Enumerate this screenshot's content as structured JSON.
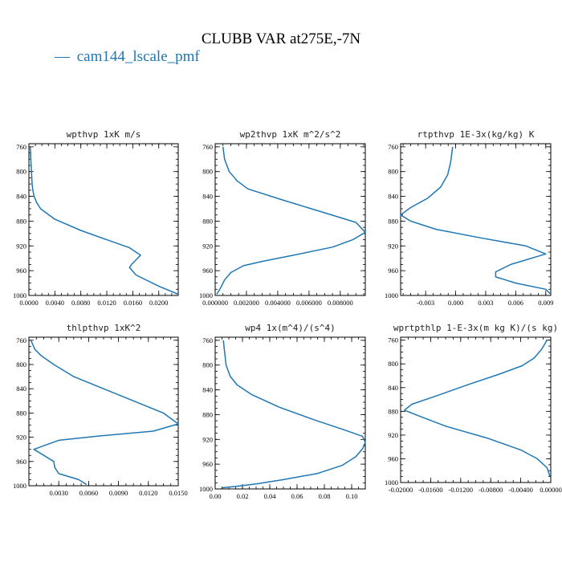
{
  "figure": {
    "title": "CLUBB VAR at275E,-7N",
    "legend": [
      {
        "label": "cam144_lscale_pmf",
        "color": "#1f77b4",
        "marker": "—"
      }
    ]
  },
  "chart_data": [
    {
      "type": "line",
      "title": "wpthvp   1xK m/s",
      "xlim": [
        0.0,
        0.023
      ],
      "ylim": [
        1000,
        755
      ],
      "y_inverted": true,
      "xticks": [
        0.0,
        0.004,
        0.008,
        0.012,
        0.016,
        0.02
      ],
      "xtick_labels": [
        "0.0000",
        "0.0040",
        "0.0080",
        "0.0120",
        "0.0160",
        "0.0200"
      ],
      "yticks": [
        760,
        800,
        840,
        880,
        920,
        960,
        1000
      ],
      "ytick_labels": [
        "760",
        "800",
        "840",
        "880",
        "920",
        "960",
        "1000"
      ],
      "series": [
        {
          "name": "cam144_lscale_pmf",
          "color": "#1f77b4",
          "x": [
            0.0002,
            0.0003,
            0.0004,
            0.0005,
            0.0006,
            0.0008,
            0.0012,
            0.0018,
            0.004,
            0.008,
            0.012,
            0.0155,
            0.0172,
            0.0158,
            0.0155,
            0.0165,
            0.02,
            0.023
          ],
          "y": [
            760,
            780,
            800,
            820,
            830,
            840,
            850,
            860,
            877,
            895,
            910,
            923,
            935,
            950,
            955,
            967,
            985,
            998
          ]
        }
      ]
    },
    {
      "type": "line",
      "title": "wp2thvp   1xK m^2/s^2",
      "xlim": [
        0.0,
        0.0096
      ],
      "ylim": [
        1000,
        755
      ],
      "y_inverted": true,
      "xticks": [
        0.0,
        0.002,
        0.004,
        0.006,
        0.008
      ],
      "xtick_labels": [
        "0.000000",
        "0.002000",
        "0.004000",
        "0.006000",
        "0.008000"
      ],
      "yticks": [
        760,
        800,
        840,
        880,
        920,
        960,
        1000
      ],
      "ytick_labels": [
        "760",
        "800",
        "840",
        "880",
        "920",
        "960",
        "1000"
      ],
      "series": [
        {
          "name": "cam144_lscale_pmf",
          "color": "#1f77b4",
          "x": [
            0.0005,
            0.0006,
            0.0009,
            0.0014,
            0.0021,
            0.0042,
            0.0068,
            0.009,
            0.0096,
            0.0088,
            0.0075,
            0.005,
            0.003,
            0.0018,
            0.001,
            0.0006,
            0.0003,
            0.0001
          ],
          "y": [
            760,
            780,
            800,
            815,
            828,
            845,
            865,
            882,
            898,
            910,
            922,
            935,
            945,
            952,
            963,
            975,
            990,
            998
          ]
        }
      ]
    },
    {
      "type": "line",
      "title": "rtpthvp   1E-3x(kg/kg) K",
      "xlim": [
        -0.0055,
        0.0095
      ],
      "ylim": [
        1000,
        755
      ],
      "y_inverted": true,
      "xticks": [
        -0.003,
        0.0,
        0.003,
        0.006,
        0.009
      ],
      "xtick_labels": [
        "-0.003",
        "0.000",
        "0.003",
        "0.006",
        "0.009"
      ],
      "yticks": [
        760,
        800,
        840,
        880,
        920,
        960,
        1000
      ],
      "ytick_labels": [
        "760",
        "800",
        "840",
        "880",
        "920",
        "960",
        "1000"
      ],
      "series": [
        {
          "name": "cam144_lscale_pmf",
          "color": "#1f77b4",
          "x": [
            -0.0003,
            -0.0005,
            -0.0008,
            -0.0015,
            -0.0028,
            -0.0045,
            -0.0055,
            -0.0045,
            -0.002,
            0.0025,
            0.007,
            0.009,
            0.0055,
            0.004,
            0.004,
            0.006,
            0.009,
            0.0095
          ],
          "y": [
            760,
            785,
            805,
            825,
            843,
            858,
            870,
            880,
            893,
            907,
            920,
            933,
            950,
            962,
            970,
            980,
            990,
            998
          ]
        }
      ]
    },
    {
      "type": "line",
      "title": "thlpthvp   1xK^2",
      "xlim": [
        0.0,
        0.015
      ],
      "ylim": [
        1000,
        755
      ],
      "y_inverted": true,
      "xticks": [
        0.003,
        0.006,
        0.009,
        0.012,
        0.015
      ],
      "xtick_labels": [
        "0.0030",
        "0.0060",
        "0.0090",
        "0.0120",
        "0.0150"
      ],
      "yticks": [
        760,
        800,
        840,
        880,
        920,
        960,
        1000
      ],
      "ytick_labels": [
        "760",
        "800",
        "840",
        "880",
        "920",
        "960",
        "1000"
      ],
      "series": [
        {
          "name": "cam144_lscale_pmf",
          "color": "#1f77b4",
          "x": [
            0.0002,
            0.0006,
            0.0012,
            0.0025,
            0.0045,
            0.0075,
            0.0105,
            0.0135,
            0.015,
            0.0125,
            0.007,
            0.003,
            0.0005,
            0.0015,
            0.0025,
            0.0026,
            0.003,
            0.005,
            0.0058
          ],
          "y": [
            760,
            775,
            785,
            800,
            820,
            840,
            860,
            880,
            898,
            910,
            918,
            925,
            940,
            950,
            960,
            970,
            980,
            990,
            998
          ]
        }
      ]
    },
    {
      "type": "line",
      "title": "wp4   1x(m^4)/(s^4)",
      "xlim": [
        0.0,
        0.11
      ],
      "ylim": [
        1000,
        755
      ],
      "y_inverted": true,
      "xticks": [
        0.0,
        0.02,
        0.04,
        0.06,
        0.08,
        0.1
      ],
      "xtick_labels": [
        "0.00",
        "0.02",
        "0.04",
        "0.06",
        "0.08",
        "0.10"
      ],
      "yticks": [
        760,
        800,
        840,
        880,
        920,
        960,
        1000
      ],
      "ytick_labels": [
        "760",
        "800",
        "840",
        "880",
        "920",
        "960",
        "1000"
      ],
      "series": [
        {
          "name": "cam144_lscale_pmf",
          "color": "#1f77b4",
          "x": [
            0.006,
            0.007,
            0.008,
            0.011,
            0.016,
            0.027,
            0.047,
            0.072,
            0.095,
            0.108,
            0.11,
            0.108,
            0.103,
            0.093,
            0.075,
            0.05,
            0.03,
            0.015,
            0.005
          ],
          "y": [
            760,
            780,
            800,
            818,
            832,
            848,
            868,
            888,
            905,
            915,
            925,
            935,
            948,
            962,
            975,
            985,
            992,
            996,
            998
          ]
        }
      ]
    },
    {
      "type": "line",
      "title": "wprtpthlp   1-E-3x(m kg K)/(s kg)",
      "xlim": [
        -0.02,
        0.0
      ],
      "ylim": [
        1000,
        755
      ],
      "y_inverted": true,
      "xticks": [
        -0.02,
        -0.016,
        -0.012,
        -0.008,
        -0.004,
        0.0
      ],
      "xtick_labels": [
        "-0.02000",
        "-0.01600",
        "-0.01200",
        "-0.00800",
        "-0.00400",
        "0.00000"
      ],
      "yticks": [
        760,
        800,
        840,
        880,
        920,
        960,
        1000
      ],
      "ytick_labels": [
        "760",
        "800",
        "840",
        "880",
        "920",
        "960",
        "1000"
      ],
      "series": [
        {
          "name": "cam144_lscale_pmf",
          "color": "#1f77b4",
          "x": [
            -0.0005,
            -0.0012,
            -0.0022,
            -0.0038,
            -0.007,
            -0.011,
            -0.0155,
            -0.0185,
            -0.0195,
            -0.0175,
            -0.014,
            -0.0085,
            -0.004,
            -0.0018,
            -0.0005,
            -0.0001
          ],
          "y": [
            760,
            775,
            790,
            803,
            818,
            835,
            855,
            868,
            878,
            888,
            905,
            925,
            945,
            960,
            975,
            990
          ]
        }
      ]
    }
  ]
}
